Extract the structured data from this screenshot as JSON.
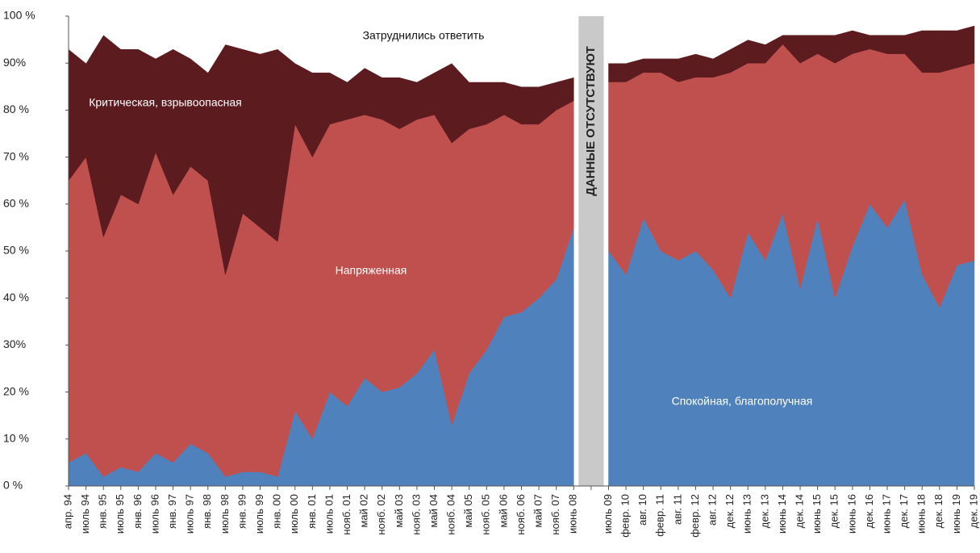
{
  "chart_data": {
    "type": "stacked_area",
    "band_label": "ДАННЫЕ ОТСУТСТВУЮТ",
    "categories": [
      "апр. 94",
      "июль 94",
      "янв. 95",
      "июль 95",
      "янв. 96",
      "июль 96",
      "янв. 97",
      "июль 97",
      "янв. 98",
      "июль 98",
      "янв. 99",
      "июль 99",
      "янв. 00",
      "июль 00",
      "янв. 01",
      "июль 01",
      "нояб. 01",
      "май 02",
      "нояб. 02",
      "май 03",
      "нояб. 03",
      "май 04",
      "нояб. 04",
      "май 05",
      "нояб. 05",
      "май 06",
      "нояб. 06",
      "май 07",
      "нояб. 07",
      "июнь 08",
      null,
      "июль 09",
      "февр. 10",
      "авг. 10",
      "февр. 11",
      "авг. 11",
      "февр. 12",
      "авг. 12",
      "дек. 12",
      "июнь 13",
      "дек. 13",
      "июнь 14",
      "дек. 14",
      "июнь 15",
      "дек. 15",
      "июнь 16",
      "дек. 16",
      "июнь 17",
      "дек. 17",
      "июнь 18",
      "дек. 18",
      "июнь 19",
      "дек. 19"
    ],
    "series": [
      {
        "name": "Спокойная, благополучная",
        "color": "#4f81bd",
        "values": [
          5,
          7,
          2,
          4,
          3,
          7,
          5,
          9,
          7,
          2,
          3,
          3,
          2,
          16,
          10,
          20,
          17,
          23,
          20,
          21,
          24,
          29,
          13,
          24,
          29,
          36,
          37,
          40,
          44,
          55,
          null,
          50,
          45,
          57,
          50,
          48,
          50,
          46,
          40,
          54,
          48,
          58,
          42,
          57,
          40,
          51,
          60,
          55,
          61,
          45,
          38,
          47,
          48
        ]
      },
      {
        "name": "Напряженная",
        "color": "#c0504d",
        "values": [
          60,
          63,
          51,
          58,
          57,
          64,
          57,
          59,
          58,
          43,
          55,
          52,
          50,
          61,
          60,
          57,
          61,
          56,
          58,
          55,
          54,
          50,
          60,
          52,
          48,
          43,
          40,
          37,
          36,
          27,
          null,
          36,
          41,
          31,
          38,
          38,
          37,
          41,
          48,
          36,
          42,
          36,
          48,
          35,
          50,
          41,
          33,
          37,
          31,
          43,
          50,
          42,
          42
        ]
      },
      {
        "name": "Критическая, взрывоопасная",
        "color": "#5c1b1f",
        "values": [
          28,
          20,
          43,
          31,
          33,
          20,
          31,
          23,
          23,
          49,
          35,
          37,
          41,
          13,
          18,
          11,
          8,
          10,
          9,
          11,
          8,
          9,
          17,
          10,
          9,
          7,
          8,
          8,
          6,
          5,
          null,
          4,
          4,
          3,
          3,
          5,
          5,
          4,
          5,
          5,
          4,
          2,
          6,
          4,
          6,
          5,
          3,
          4,
          4,
          9,
          9,
          8,
          8
        ]
      },
      {
        "name": "Затруднились ответить",
        "color": "#ffffff",
        "values": [
          7,
          10,
          4,
          7,
          7,
          9,
          7,
          9,
          12,
          6,
          7,
          8,
          7,
          10,
          12,
          12,
          14,
          11,
          13,
          13,
          14,
          12,
          10,
          14,
          14,
          14,
          15,
          15,
          14,
          13,
          null,
          10,
          10,
          9,
          9,
          9,
          8,
          9,
          7,
          5,
          6,
          4,
          4,
          4,
          4,
          3,
          3,
          4,
          4,
          3,
          3,
          3,
          2
        ]
      }
    ],
    "ylim": [
      0,
      100
    ],
    "yticks": [
      {
        "value": 0,
        "label": "0 %"
      },
      {
        "value": 10,
        "label": "10 %"
      },
      {
        "value": 20,
        "label": "20 %"
      },
      {
        "value": 30,
        "label": "30%"
      },
      {
        "value": 40,
        "label": "40 %"
      },
      {
        "value": 50,
        "label": "50 %"
      },
      {
        "value": 60,
        "label": "60 %"
      },
      {
        "value": 70,
        "label": "70 %"
      },
      {
        "value": 80,
        "label": "80 %"
      },
      {
        "value": 90,
        "label": "90%"
      },
      {
        "value": 100,
        "label": "100 %"
      }
    ],
    "grid": false
  }
}
